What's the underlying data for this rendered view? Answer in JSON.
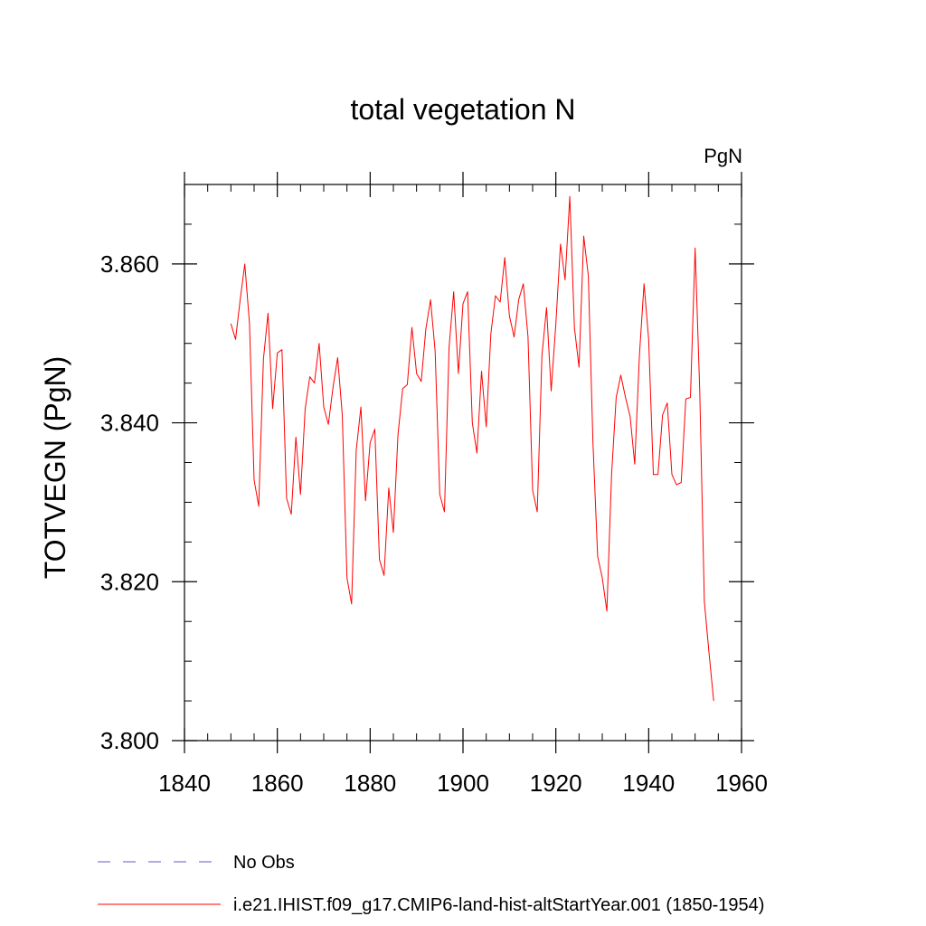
{
  "chart_data": {
    "type": "line",
    "title": "total vegetation N",
    "units_label": "PgN",
    "ylabel": "TOTVEGN  (PgN)",
    "xlabel": "",
    "xlim": [
      1840,
      1960
    ],
    "ylim": [
      3.8,
      3.87
    ],
    "x_ticks": [
      1840,
      1860,
      1880,
      1900,
      1920,
      1940,
      1960
    ],
    "x_tick_labels": [
      "1840",
      "1860",
      "1880",
      "1900",
      "1920",
      "1940",
      "1960"
    ],
    "y_ticks": [
      3.8,
      3.82,
      3.84,
      3.86
    ],
    "y_tick_labels": [
      "3.800",
      "3.820",
      "3.840",
      "3.860"
    ],
    "grid": false,
    "legend_placement": "bottom-left, below plot",
    "legend": [
      {
        "label": "No Obs",
        "color": "#6655cc",
        "style": "dashed"
      },
      {
        "label": "i.e21.IHIST.f09_g17.CMIP6-land-hist-altStartYear.001 (1850-1954)",
        "color": "#ff0000",
        "style": "solid"
      }
    ],
    "series": [
      {
        "name": "i.e21.IHIST.f09_g17.CMIP6-land-hist-altStartYear.001 (1850-1954)",
        "color": "#ff0000",
        "x": [
          1850,
          1851,
          1852,
          1853,
          1854,
          1855,
          1856,
          1857,
          1858,
          1859,
          1860,
          1861,
          1862,
          1863,
          1864,
          1865,
          1866,
          1867,
          1868,
          1869,
          1870,
          1871,
          1872,
          1873,
          1874,
          1875,
          1876,
          1877,
          1878,
          1879,
          1880,
          1881,
          1882,
          1883,
          1884,
          1885,
          1886,
          1887,
          1888,
          1889,
          1890,
          1891,
          1892,
          1893,
          1894,
          1895,
          1896,
          1897,
          1898,
          1899,
          1900,
          1901,
          1902,
          1903,
          1904,
          1905,
          1906,
          1907,
          1908,
          1909,
          1910,
          1911,
          1912,
          1913,
          1914,
          1915,
          1916,
          1917,
          1918,
          1919,
          1920,
          1921,
          1922,
          1923,
          1924,
          1925,
          1926,
          1927,
          1928,
          1929,
          1930,
          1931,
          1932,
          1933,
          1934,
          1935,
          1936,
          1937,
          1938,
          1939,
          1940,
          1941,
          1942,
          1943,
          1944,
          1945,
          1946,
          1947,
          1948,
          1949,
          1950,
          1951,
          1952,
          1953,
          1954
        ],
        "y": [
          3.8525,
          3.8505,
          3.8555,
          3.86,
          3.8525,
          3.8328,
          3.8295,
          3.848,
          3.8538,
          3.8418,
          3.8488,
          3.8492,
          3.8305,
          3.8285,
          3.8382,
          3.831,
          3.8418,
          3.8458,
          3.845,
          3.85,
          3.842,
          3.8398,
          3.8445,
          3.8482,
          3.841,
          3.8205,
          3.8172,
          3.8365,
          3.842,
          3.8302,
          3.8375,
          3.8392,
          3.8228,
          3.8208,
          3.8318,
          3.8262,
          3.8385,
          3.8443,
          3.8448,
          3.852,
          3.8462,
          3.8452,
          3.8518,
          3.8555,
          3.849,
          3.831,
          3.8288,
          3.8495,
          3.8565,
          3.8462,
          3.855,
          3.8565,
          3.84,
          3.8362,
          3.8465,
          3.8395,
          3.8512,
          3.856,
          3.8552,
          3.8608,
          3.8535,
          3.8508,
          3.8555,
          3.8575,
          3.8508,
          3.8315,
          3.8288,
          3.8485,
          3.8545,
          3.844,
          3.8525,
          3.8625,
          3.858,
          3.8685,
          3.852,
          3.847,
          3.8635,
          3.8585,
          3.8375,
          3.8232,
          3.8205,
          3.8163,
          3.8335,
          3.8432,
          3.846,
          3.8432,
          3.8408,
          3.8348,
          3.8485,
          3.8575,
          3.8505,
          3.8335,
          3.8335,
          3.841,
          3.8425,
          3.8335,
          3.8322,
          3.8325,
          3.843,
          3.8432,
          3.862,
          3.844,
          3.8175,
          3.811,
          3.805
        ]
      }
    ]
  }
}
